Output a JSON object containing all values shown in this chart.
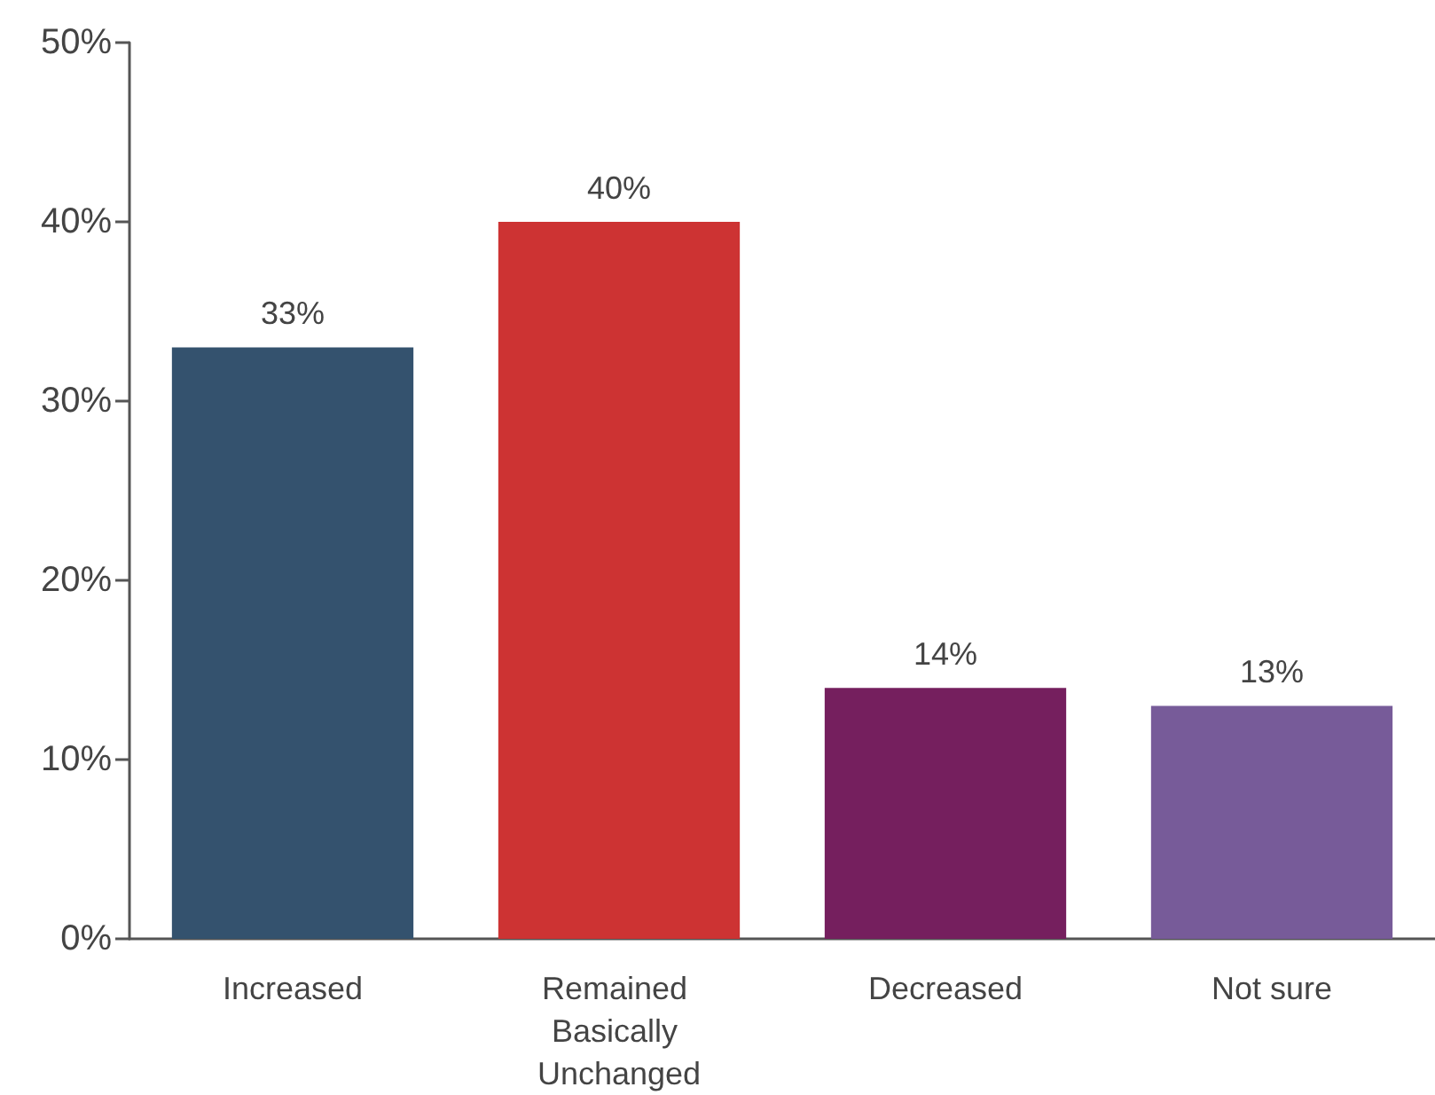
{
  "chart_data": {
    "type": "bar",
    "categories": [
      "Increased",
      "Remained Basically Unchanged",
      "Decreased",
      "Not sure"
    ],
    "values": [
      33,
      40,
      14,
      13
    ],
    "colors": [
      "#34526e",
      "#cd3333",
      "#751f5e",
      "#775b99"
    ],
    "value_labels": [
      "33%",
      "40%",
      "14%",
      "13%"
    ],
    "ylim": [
      0,
      50
    ],
    "yticks": [
      {
        "value": 0,
        "label": "0%"
      },
      {
        "value": 10,
        "label": "10%"
      },
      {
        "value": 20,
        "label": "20%"
      },
      {
        "value": 30,
        "label": "30%"
      },
      {
        "value": 40,
        "label": "40%"
      },
      {
        "value": 50,
        "label": "50%"
      }
    ],
    "grid": false
  }
}
